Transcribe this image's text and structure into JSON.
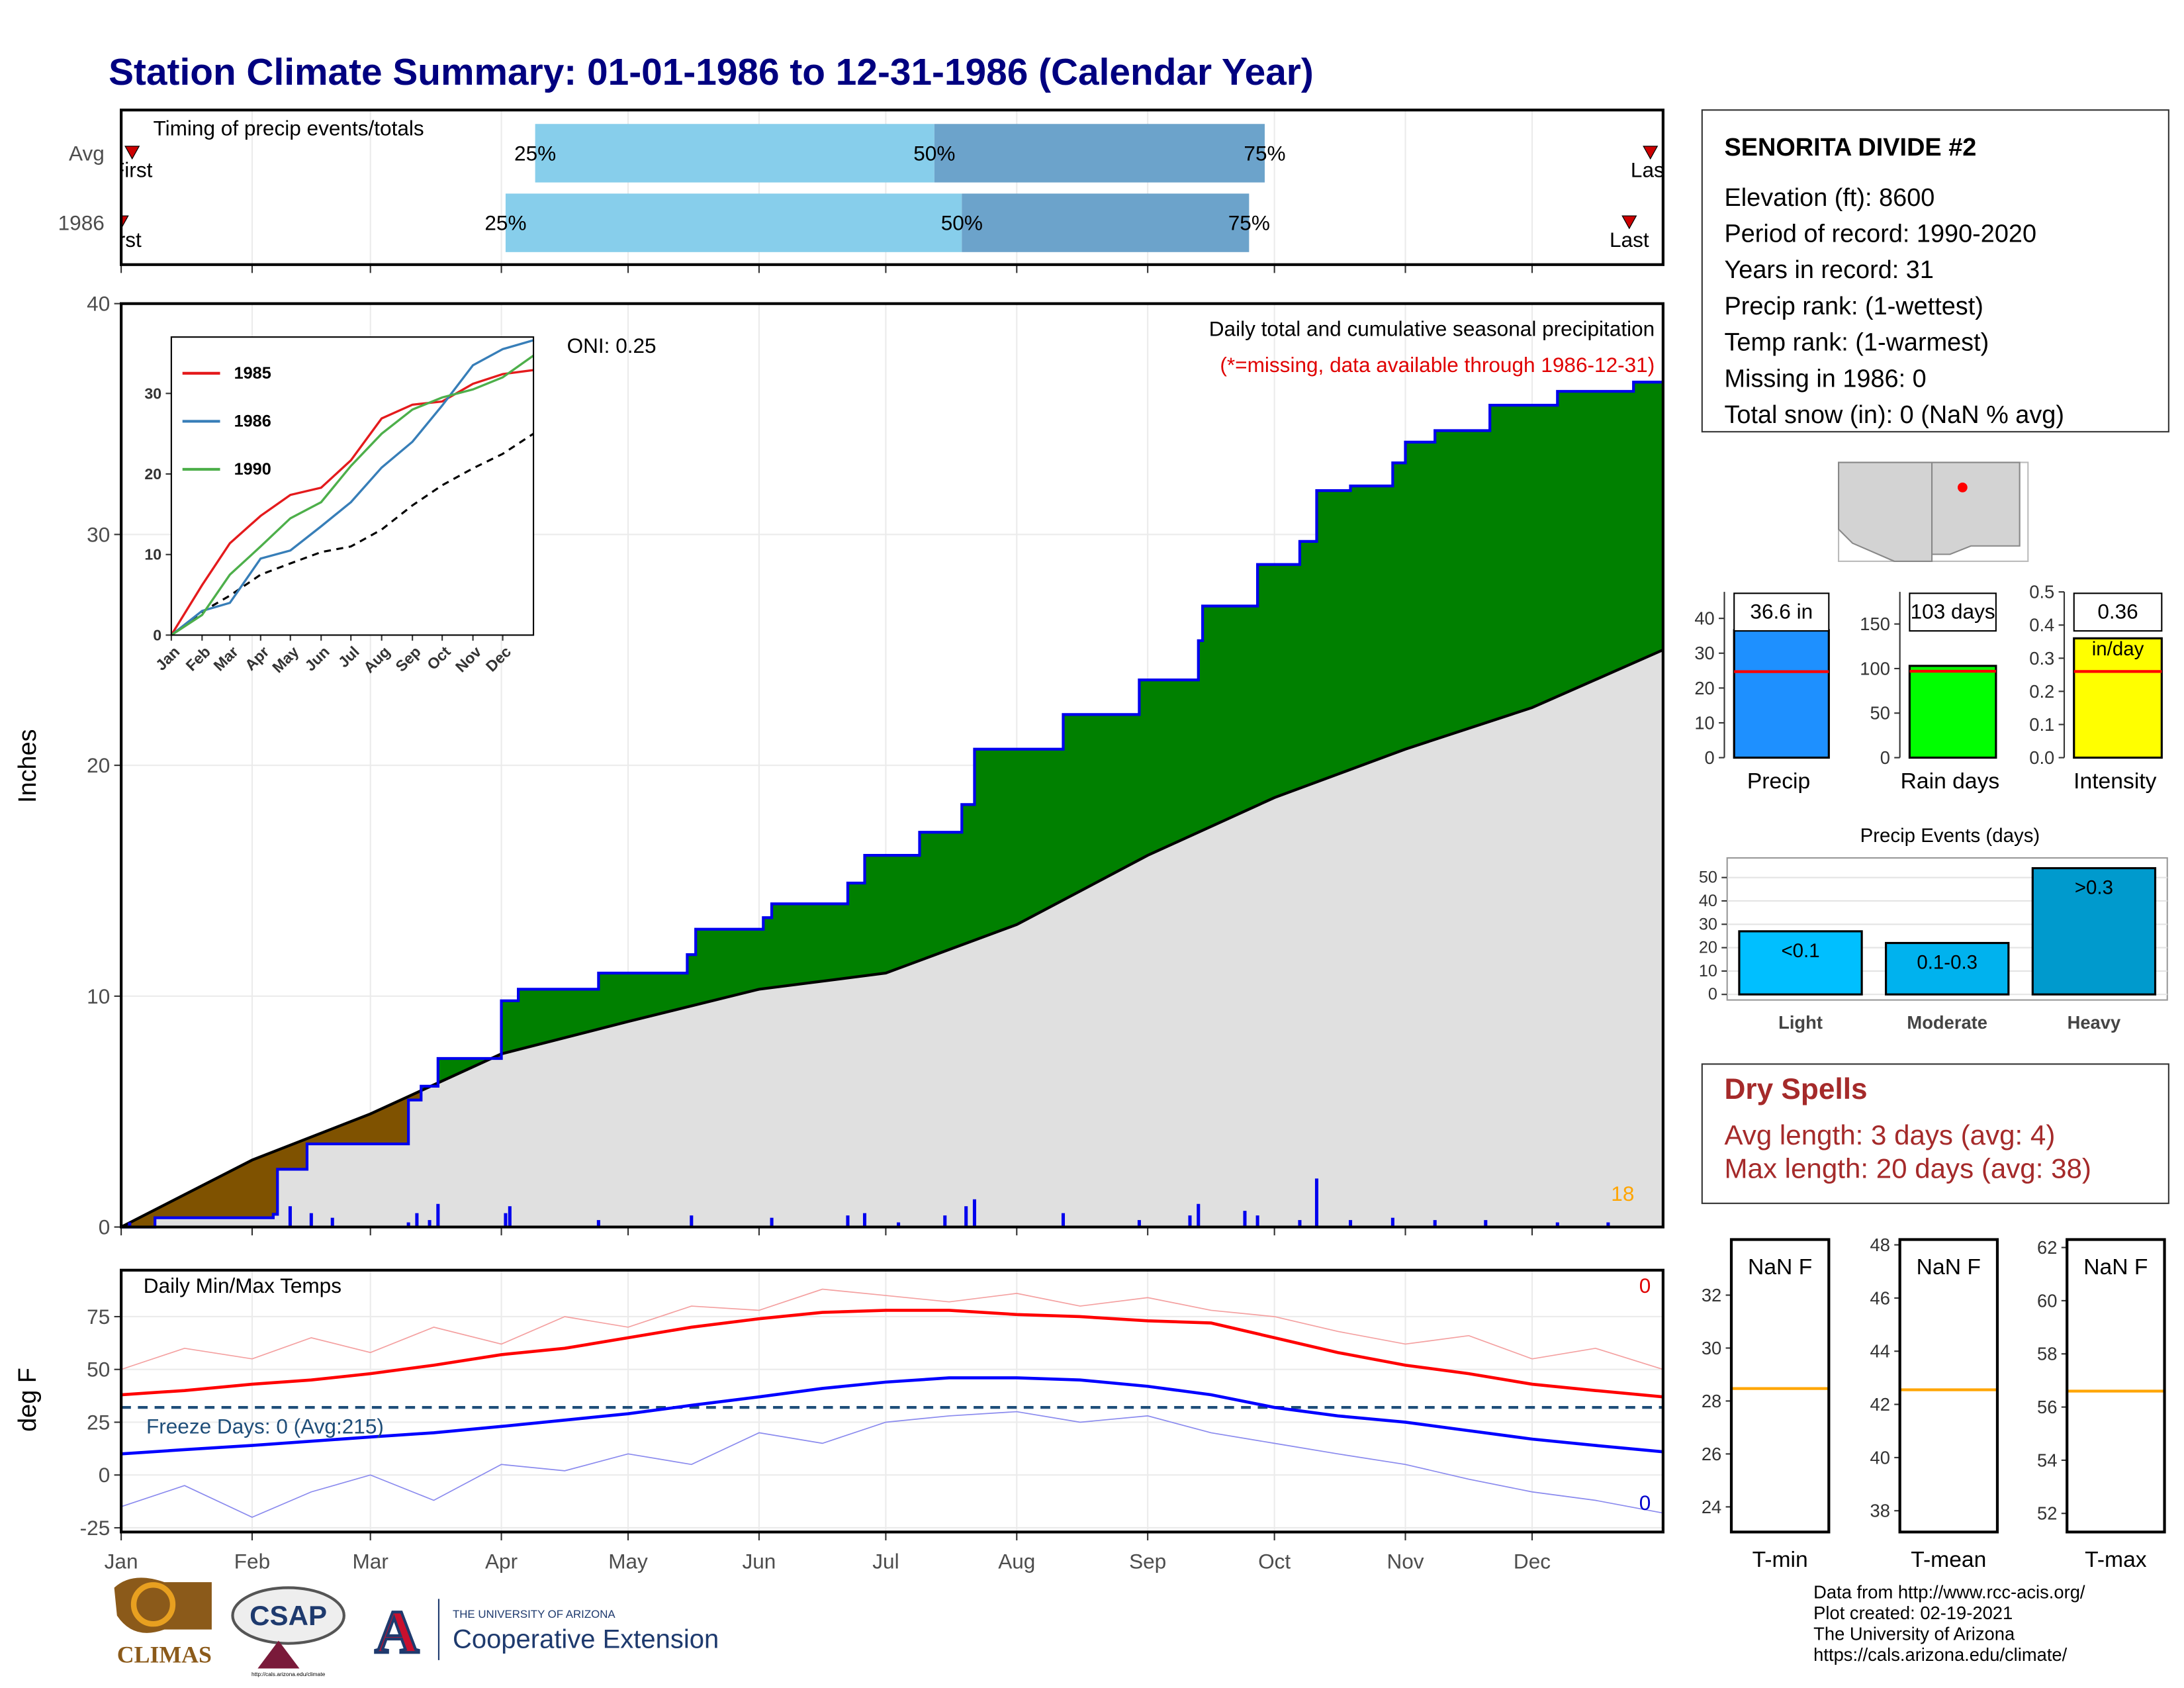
{
  "title": "Station Climate Summary: 01-01-1986 to 12-31-1986 (Calendar Year)",
  "chart_data": [
    {
      "type": "timing",
      "title": "Timing of precip events/totals",
      "categories": [
        "Avg",
        "1986"
      ],
      "first": [
        2.6,
        0
      ],
      "q25": [
        98,
        91
      ],
      "q50": [
        192.5,
        199
      ],
      "q75": [
        270.7,
        267
      ],
      "last": [
        362,
        357
      ],
      "quartile_labels": [
        "25%",
        "50%",
        "75%"
      ],
      "first_label": "First",
      "last_label": "Last",
      "colors": [
        "#87ceeb",
        "#6ca3cb"
      ],
      "marker_color": "#cc0000",
      "xlim": [
        0,
        365
      ],
      "xticks": [
        0,
        31,
        59,
        90,
        120,
        151,
        181,
        212,
        243,
        273,
        304,
        334
      ],
      "grid": true
    },
    {
      "type": "cumulative_precip",
      "title": "Daily total and cumulative seasonal precipitation",
      "subtitle": "(*=missing, data available through 1986-12-31)",
      "annotation": "ONI: 0.25",
      "count": 18,
      "y_label": "Inches",
      "xlim": [
        0,
        365
      ],
      "ylim": [
        0,
        40
      ],
      "yticks": [
        0,
        10,
        20,
        30,
        40
      ],
      "xticks": [
        0,
        31,
        59,
        90,
        120,
        151,
        181,
        212,
        243,
        273,
        304,
        334
      ],
      "grid": true,
      "observed": {
        "color": "#0000ee",
        "x": [
          0,
          8,
          36,
          37,
          44,
          68,
          71,
          75,
          90,
          94,
          113,
          134,
          136,
          152,
          154,
          172,
          176,
          189,
          199,
          202,
          223,
          241,
          255,
          256,
          269,
          279,
          283,
          291,
          301,
          304,
          311,
          324,
          340,
          358,
          365
        ],
        "values": [
          0,
          0.4,
          0.55,
          2.5,
          3.6,
          5.5,
          6.1,
          7.3,
          9.8,
          10.3,
          11.0,
          11.8,
          12.9,
          13.4,
          14.0,
          14.9,
          16.1,
          17.1,
          18.3,
          20.7,
          22.2,
          23.7,
          25.4,
          26.9,
          28.7,
          29.7,
          31.9,
          32.1,
          33.1,
          34.0,
          34.5,
          35.6,
          36.2,
          36.6,
          36.6
        ]
      },
      "average": {
        "color": "#000000",
        "x": [
          0,
          31,
          59,
          90,
          120,
          151,
          181,
          212,
          243,
          273,
          304,
          334,
          365
        ],
        "values": [
          0,
          2.9,
          4.9,
          7.5,
          8.9,
          10.3,
          11.0,
          13.1,
          16.1,
          18.6,
          20.7,
          22.5,
          25.0
        ]
      },
      "daily": {
        "color": "#0000ee",
        "x": [
          2,
          40,
          45,
          50,
          68,
          70,
          73,
          75,
          91,
          92,
          113,
          135,
          154,
          172,
          176,
          184,
          195,
          200,
          202,
          223,
          241,
          253,
          255,
          266,
          269,
          279,
          283,
          291,
          301,
          311,
          323,
          340,
          352
        ],
        "values": [
          0.2,
          0.9,
          0.6,
          0.4,
          0.2,
          0.6,
          0.3,
          1.0,
          0.6,
          0.9,
          0.3,
          0.5,
          0.4,
          0.5,
          0.6,
          0.2,
          0.5,
          0.9,
          1.2,
          0.6,
          0.3,
          0.5,
          1.0,
          0.7,
          0.5,
          0.3,
          2.1,
          0.3,
          0.4,
          0.3,
          0.3,
          0.2,
          0.2
        ]
      },
      "above_color": "#008000",
      "below_color": "#7f5200",
      "base_color": "#e0e0e0",
      "count_color": "#ffa500"
    },
    {
      "type": "line",
      "xlim": [
        0,
        365
      ],
      "ylim": [
        0,
        37
      ],
      "yticks": [
        0,
        10,
        20,
        30
      ],
      "xticks": [
        {
          "value": 0,
          "label": "Jan"
        },
        {
          "value": 31,
          "label": "Feb"
        },
        {
          "value": 59,
          "label": "Mar"
        },
        {
          "value": 90,
          "label": "Apr"
        },
        {
          "value": 120,
          "label": "May"
        },
        {
          "value": 151,
          "label": "Jun"
        },
        {
          "value": 181,
          "label": "Jul"
        },
        {
          "value": 212,
          "label": "Aug"
        },
        {
          "value": 243,
          "label": "Sep"
        },
        {
          "value": 273,
          "label": "Oct"
        },
        {
          "value": 304,
          "label": "Nov"
        },
        {
          "value": 334,
          "label": "Dec"
        }
      ],
      "x": [
        0,
        31,
        59,
        90,
        120,
        151,
        181,
        212,
        243,
        273,
        304,
        334,
        365
      ],
      "series": [
        {
          "name": "1985",
          "color": "#e41a1c",
          "values": [
            0,
            6.2,
            11.4,
            14.8,
            17.4,
            18.3,
            21.7,
            26.9,
            28.6,
            29.0,
            31.2,
            32.4,
            32.9
          ]
        },
        {
          "name": "1986",
          "color": "#377eb8",
          "values": [
            0,
            3.0,
            4.0,
            9.5,
            10.5,
            13.5,
            16.5,
            20.8,
            24.0,
            28.5,
            33.5,
            35.5,
            36.6
          ]
        },
        {
          "name": "1990",
          "color": "#4daf4a",
          "values": [
            0,
            2.5,
            7.5,
            11.0,
            14.5,
            16.5,
            21.0,
            25.0,
            28.0,
            29.5,
            30.5,
            32.0,
            34.7
          ]
        }
      ],
      "average": {
        "color": "#000000",
        "values": [
          0,
          2.9,
          4.9,
          7.5,
          8.9,
          10.3,
          11.0,
          13.1,
          16.1,
          18.6,
          20.7,
          22.5,
          25.0
        ]
      },
      "legend": "top-left"
    },
    {
      "type": "temperature",
      "title": "Daily Min/Max Temps",
      "y_label": "deg F",
      "annotation": "Freeze Days: 0 (Avg:215)",
      "max_count": 0,
      "min_count": 0,
      "freeze_line": 32,
      "freeze_color": "#1f4e79",
      "xlim": [
        0,
        365
      ],
      "ylim": [
        -27,
        97
      ],
      "yticks": [
        -25,
        0,
        25,
        50,
        75
      ],
      "grid": true,
      "xticks": [
        {
          "value": 0,
          "label": "Jan"
        },
        {
          "value": 31,
          "label": "Feb"
        },
        {
          "value": 59,
          "label": "Mar"
        },
        {
          "value": 90,
          "label": "Apr"
        },
        {
          "value": 120,
          "label": "May"
        },
        {
          "value": 151,
          "label": "Jun"
        },
        {
          "value": 181,
          "label": "Jul"
        },
        {
          "value": 212,
          "label": "Aug"
        },
        {
          "value": 243,
          "label": "Sep"
        },
        {
          "value": 273,
          "label": "Oct"
        },
        {
          "value": 304,
          "label": "Nov"
        },
        {
          "value": 334,
          "label": "Dec"
        }
      ],
      "x": [
        0,
        15,
        31,
        45,
        59,
        74,
        90,
        105,
        120,
        135,
        151,
        166,
        181,
        196,
        212,
        227,
        243,
        258,
        273,
        288,
        304,
        319,
        334,
        349,
        365
      ],
      "series": [
        {
          "color": "#f4a0a0",
          "width": 0.8,
          "values": [
            50,
            60,
            55,
            65,
            58,
            70,
            62,
            75,
            70,
            80,
            78,
            88,
            85,
            82,
            86,
            80,
            84,
            78,
            75,
            68,
            62,
            66,
            55,
            60,
            50
          ]
        },
        {
          "color": "#8a8aee",
          "width": 0.8,
          "values": [
            -15,
            -5,
            -20,
            -8,
            0,
            -12,
            5,
            2,
            10,
            5,
            20,
            15,
            25,
            28,
            30,
            25,
            28,
            20,
            15,
            10,
            5,
            -2,
            -8,
            -12,
            -18
          ]
        },
        {
          "color": "#ff0000",
          "width": 2.2,
          "values": [
            38,
            40,
            43,
            45,
            48,
            52,
            57,
            60,
            65,
            70,
            74,
            77,
            78,
            78,
            76,
            75,
            73,
            72,
            65,
            58,
            52,
            48,
            43,
            40,
            37
          ]
        },
        {
          "color": "#0000ff",
          "width": 2.2,
          "values": [
            10,
            12,
            14,
            16,
            18,
            20,
            23,
            26,
            29,
            33,
            37,
            41,
            44,
            46,
            46,
            45,
            42,
            38,
            32,
            28,
            25,
            21,
            17,
            14,
            11
          ]
        }
      ]
    },
    {
      "type": "summary_bar",
      "label": "Precip",
      "value": 36.6,
      "value_label": "36.6 in",
      "average": 24.7,
      "color": "#1e90ff",
      "ylim": [
        0,
        47.6
      ],
      "yticks": [
        0,
        10,
        20,
        30,
        40
      ]
    },
    {
      "type": "summary_bar",
      "label": "Rain days",
      "value": 103,
      "value_label": "103 days",
      "average": 97,
      "color": "#00ff00",
      "ylim": [
        0,
        186
      ],
      "yticks": [
        0,
        50,
        100,
        150
      ]
    },
    {
      "type": "summary_bar",
      "label": "Intensity",
      "value": 0.36,
      "value_label": "0.36",
      "unit": "in/day",
      "average": 0.26,
      "color": "#ffff00",
      "ylim": [
        0,
        0.5
      ],
      "yticks": [
        {
          "value": 0,
          "label": "0.0"
        },
        0.1,
        0.2,
        0.3,
        0.4,
        0.5
      ]
    },
    {
      "type": "bar",
      "title": "Precip Events (days)",
      "categories": [
        "Light",
        "Moderate",
        "Heavy"
      ],
      "values": [
        27,
        22,
        54
      ],
      "ranges": [
        "<0.1",
        "0.1-0.3",
        ">0.3"
      ],
      "colors": [
        "#00bfff",
        "#00b2ee",
        "#009acd"
      ],
      "ylim": [
        0,
        56
      ],
      "yticks": [
        0,
        10,
        20,
        30,
        40,
        50
      ],
      "grid": true
    },
    {
      "type": "temp_summary",
      "label": "T-min",
      "value_label": "NaN F",
      "average": 28.47,
      "color": "#ffa500",
      "ylim": [
        23.05,
        34.1
      ],
      "yticks": [
        24,
        26,
        28,
        30,
        32
      ]
    },
    {
      "type": "temp_summary",
      "label": "T-mean",
      "value_label": "NaN F",
      "average": 42.55,
      "color": "#ffa500",
      "ylim": [
        37.2,
        48.2
      ],
      "yticks": [
        38,
        40,
        42,
        44,
        46,
        48
      ]
    },
    {
      "type": "temp_summary",
      "label": "T-max",
      "value_label": "NaN F",
      "average": 56.6,
      "color": "#ffa500",
      "ylim": [
        51.3,
        62.3
      ],
      "yticks": [
        52,
        54,
        56,
        58,
        60,
        62
      ]
    }
  ],
  "station": {
    "name": "SENORITA DIVIDE #2",
    "lines": [
      "Elevation (ft): 8600",
      "Period of record: 1990-2020",
      "Years in record: 31",
      "Precip rank:  (1-wettest)",
      "Temp rank:  (1-warmest)",
      "Missing in 1986: 0",
      "Total snow (in): 0 (NaN % avg)"
    ]
  },
  "dry_spells": {
    "title": "Dry Spells",
    "lines": [
      "Avg length: 3 days (avg: 4)",
      "Max length: 20 days (avg: 38)"
    ]
  },
  "footer": [
    "Data from http://www.rcc-acis.org/",
    "Plot created: 02-19-2021",
    "The University of Arizona",
    "https://cals.arizona.edu/climate/"
  ],
  "logos": {
    "climas": "CLIMAS",
    "csap": "CSAP",
    "csap_url": "http://cals.arizona.edu/climate",
    "ua": "THE UNIVERSITY OF ARIZONA",
    "coop": "Cooperative Extension"
  }
}
